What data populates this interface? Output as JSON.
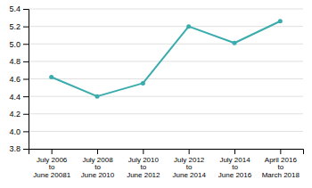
{
  "chart_data": {
    "type": "line",
    "categories": [
      "July 2006\nto\nJune 20081",
      "July 2008\nto\nJune 2010",
      "July 2010\nto\nJune 2012",
      "July 2012\nto\nJune 2014",
      "July 2014\nto\nJune 2016",
      "April 2016\nto\nMarch 2018"
    ],
    "values": [
      4.62,
      4.4,
      4.55,
      5.2,
      5.01,
      5.26
    ],
    "color": "#3aacad",
    "marker": "circle",
    "ylim": [
      3.8,
      5.4
    ],
    "yticks": [
      3.8,
      {
        "value": 4.0,
        "label": "4.0"
      },
      4.2,
      4.4,
      4.6,
      4.8,
      {
        "value": 5.0,
        "label": "5.0"
      },
      5.2,
      5.4
    ],
    "grid": true
  }
}
